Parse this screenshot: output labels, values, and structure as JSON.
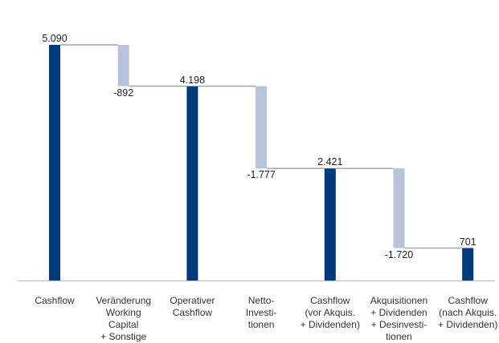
{
  "chart_data": {
    "type": "bar",
    "subtype": "waterfall",
    "categories": [
      "Cashflow",
      "Veränderung\nWorking\nCapital\n+ Sonstige",
      "Operativer\nCashflow",
      "Netto-\nInvesti-\ntionen",
      "Cashflow\n(vor Akquis.\n+ Dividenden)",
      "Akquisitionen\n+ Dividenden\n+ Desinvesti-\ntionen",
      "Cashflow\n(nach Akquis.\n+ Dividenden)"
    ],
    "values": [
      5090,
      -892,
      4198,
      -1777,
      2421,
      -1720,
      701
    ],
    "bar_kinds": [
      "total",
      "delta",
      "total",
      "delta",
      "total",
      "delta",
      "total"
    ],
    "value_labels": [
      "5.090",
      "-892",
      "4.198",
      "-1.777",
      "2.421",
      "-1.720",
      "701"
    ],
    "ylim": [
      0,
      5800
    ],
    "grid": false,
    "legend": "none",
    "colors": {
      "total": "#003a7d",
      "delta": "#b8c4dc",
      "connector": "#a6a6a6",
      "axis": "#bfbfbf"
    }
  }
}
